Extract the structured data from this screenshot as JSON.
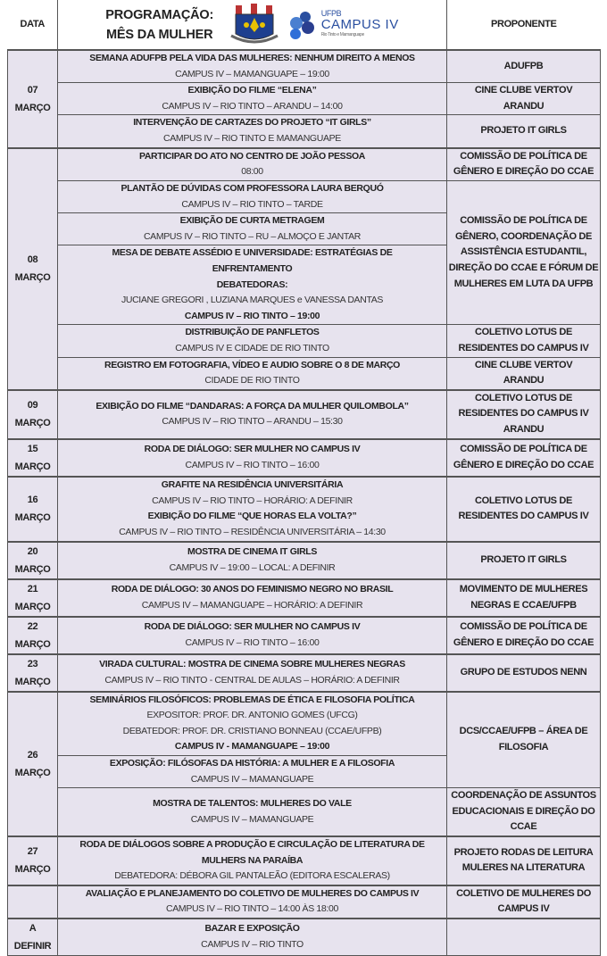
{
  "header": {
    "date_col": "DATA",
    "title_line1": "PROGRAMAÇÃO:",
    "title_line2": "MÊS DA MULHER",
    "proponent_col": "PROPONENTE",
    "logo_ufpb_label": "UFPB",
    "logo_campus_label": "CAMPUS IV",
    "logo_campus_sub": "Rio Tinto e Mamanguape"
  },
  "colors": {
    "row_bg": "#e7e3ee",
    "border": "#555555",
    "logo_blue": "#2a4fa0"
  },
  "groups": [
    {
      "date": [
        "07",
        "MARÇO"
      ],
      "events": [
        {
          "lines": [
            {
              "t": "SEMANA ADUFPB PELA VIDA DAS MULHERES: NENHUM DIREITO A MENOS",
              "b": true
            },
            {
              "t": "CAMPUS IV – MAMANGUAPE – 19:00",
              "b": false
            }
          ]
        },
        {
          "lines": [
            {
              "t": "EXIBIÇÃO DO FILME “ELENA”",
              "b": true
            },
            {
              "t": "CAMPUS IV – RIO TINTO  – ARANDU – 14:00",
              "b": false
            }
          ]
        },
        {
          "lines": [
            {
              "t": "INTERVENÇÃO DE CARTAZES DO PROJETO “IT GIRLS”",
              "b": true
            },
            {
              "t": "CAMPUS IV – RIO TINTO E MAMANGUAPE",
              "b": false
            }
          ]
        }
      ],
      "proponents": [
        {
          "covers": 1,
          "lines": [
            "ADUFPB"
          ]
        },
        {
          "covers": 1,
          "lines": [
            "CINE CLUBE VERTOV",
            "ARANDU"
          ]
        },
        {
          "covers": 1,
          "lines": [
            "PROJETO IT GIRLS"
          ]
        }
      ]
    },
    {
      "date": [
        "08",
        "MARÇO"
      ],
      "events": [
        {
          "lines": [
            {
              "t": "PARTICIPAR DO ATO NO CENTRO DE JOÃO PESSOA",
              "b": true
            },
            {
              "t": "08:00",
              "b": false
            }
          ]
        },
        {
          "lines": [
            {
              "t": "PLANTÃO DE DÚVIDAS COM PROFESSORA LAURA  BERQUÓ",
              "b": true
            },
            {
              "t": "CAMPUS IV – RIO TINTO – TARDE",
              "b": false
            }
          ]
        },
        {
          "lines": [
            {
              "t": "EXIBIÇÃO DE CURTA METRAGEM",
              "b": true
            },
            {
              "t": "CAMPUS IV – RIO TINTO – RU – ALMOÇO E JANTAR",
              "b": false
            }
          ]
        },
        {
          "lines": [
            {
              "t": "MESA DE DEBATE ASSÉDIO E UNIVERSIDADE: ESTRATÉGIAS DE",
              "b": true
            },
            {
              "t": "ENFRENTAMENTO",
              "b": true
            },
            {
              "t": "DEBATEDORAS:",
              "b": true
            },
            {
              "t": "JUCIANE GREGORI , LUZIANA MARQUES e VANESSA DANTAS",
              "b": false
            },
            {
              "t": "CAMPUS IV – RIO TINTO – 19:00",
              "b": true
            }
          ]
        },
        {
          "lines": [
            {
              "t": "DISTRIBUIÇÃO DE PANFLETOS",
              "b": true
            },
            {
              "t": "CAMPUS IV E CIDADE DE RIO TINTO",
              "b": false
            }
          ]
        },
        {
          "lines": [
            {
              "t": "REGISTRO EM FOTOGRAFIA, VÍDEO E AUDIO SOBRE O 8 DE MARÇO",
              "b": true
            },
            {
              "t": "CIDADE DE RIO TINTO",
              "b": false
            }
          ]
        }
      ],
      "proponents": [
        {
          "covers": 1,
          "lines": [
            "COMISSÃO DE POLÍTICA DE",
            "GÊNERO E DIREÇÃO DO CCAE"
          ]
        },
        {
          "covers": 3,
          "lines": [
            "COMISSÃO DE POLÍTICA DE",
            "GÊNERO, COORDENAÇÃO DE",
            "ASSISTÊNCIA ESTUDANTIL,",
            "DIREÇÃO DO CCAE E FÓRUM DE",
            "MULHERES EM LUTA DA UFPB"
          ]
        },
        {
          "covers": 1,
          "lines": [
            "COLETIVO LOTUS DE",
            "RESIDENTES DO CAMPUS IV"
          ]
        },
        {
          "covers": 1,
          "lines": [
            "CINE CLUBE VERTOV",
            "ARANDU"
          ]
        }
      ]
    },
    {
      "date": [
        "09",
        "MARÇO"
      ],
      "events": [
        {
          "lines": [
            {
              "t": "EXIBIÇÃO DO FILME “DANDARAS: A FORÇA DA MULHER QUILOMBOLA”",
              "b": true
            },
            {
              "t": "CAMPUS IV – RIO TINTO – ARANDU – 15:30",
              "b": false
            }
          ]
        }
      ],
      "proponents": [
        {
          "covers": 1,
          "lines": [
            "COLETIVO LOTUS DE",
            "RESIDENTES DO CAMPUS IV",
            "ARANDU"
          ]
        }
      ]
    },
    {
      "date": [
        "15",
        "MARÇO"
      ],
      "events": [
        {
          "lines": [
            {
              "t": "RODA DE DIÁLOGO:  SER MULHER NO CAMPUS IV",
              "b": true
            },
            {
              "t": "CAMPUS IV – RIO TINTO – 16:00",
              "b": false
            }
          ]
        }
      ],
      "proponents": [
        {
          "covers": 1,
          "lines": [
            "COMISSÃO DE POLÍTICA DE",
            "GÊNERO E DIREÇÃO DO CCAE"
          ]
        }
      ]
    },
    {
      "date": [
        "16",
        "MARÇO"
      ],
      "events": [
        {
          "lines": [
            {
              "t": "GRAFITE NA RESIDÊNCIA UNIVERSITÁRIA",
              "b": true
            },
            {
              "t": "CAMPUS IV – RIO TINTO – HORÁRIO: A DEFINIR",
              "b": false
            },
            {
              "t": "EXIBIÇÃO DO FILME “QUE HORAS ELA VOLTA?”",
              "b": true
            },
            {
              "t": "CAMPUS IV – RIO TINTO – RESIDÊNCIA UNIVERSITÁRIA – 14:30",
              "b": false
            }
          ]
        }
      ],
      "proponents": [
        {
          "covers": 1,
          "lines": [
            "COLETIVO LOTUS DE",
            "RESIDENTES DO CAMPUS IV"
          ]
        }
      ]
    },
    {
      "date": [
        "20",
        "MARÇO"
      ],
      "events": [
        {
          "lines": [
            {
              "t": "MOSTRA DE CINEMA IT GIRLS",
              "b": true
            },
            {
              "t": "CAMPUS IV – 19:00 – LOCAL: A DEFINIR",
              "b": false
            }
          ]
        }
      ],
      "proponents": [
        {
          "covers": 1,
          "lines": [
            "PROJETO IT GIRLS"
          ]
        }
      ]
    },
    {
      "date": [
        "21",
        "MARÇO"
      ],
      "events": [
        {
          "lines": [
            {
              "t": "RODA DE DIÁLOGO: 30 ANOS DO FEMINISMO NEGRO NO BRASIL",
              "b": true
            },
            {
              "t": "CAMPUS IV – MAMANGUAPE – HORÁRIO: A DEFINIR",
              "b": false
            }
          ]
        }
      ],
      "proponents": [
        {
          "covers": 1,
          "lines": [
            "MOVIMENTO DE MULHERES",
            "NEGRAS E CCAE/UFPB"
          ]
        }
      ]
    },
    {
      "date": [
        "22",
        "MARÇO"
      ],
      "events": [
        {
          "lines": [
            {
              "t": "RODA DE DIÁLOGO:  SER MULHER NO CAMPUS IV",
              "b": true
            },
            {
              "t": "CAMPUS IV – RIO TINTO – 16:00",
              "b": false
            }
          ]
        }
      ],
      "proponents": [
        {
          "covers": 1,
          "lines": [
            "COMISSÃO DE POLÍTICA DE",
            "GÊNERO E DIREÇÃO DO CCAE"
          ]
        }
      ]
    },
    {
      "date": [
        "23",
        "MARÇO"
      ],
      "events": [
        {
          "lines": [
            {
              "t": "VIRADA CULTURAL: MOSTRA DE CINEMA SOBRE MULHERES NEGRAS",
              "b": true
            },
            {
              "t": "CAMPUS IV – RIO TINTO - CENTRAL DE AULAS – HORÁRIO: A DEFINIR",
              "b": false
            }
          ]
        }
      ],
      "proponents": [
        {
          "covers": 1,
          "lines": [
            "GRUPO DE ESTUDOS NENN"
          ]
        }
      ]
    },
    {
      "date": [
        "26",
        "MARÇO"
      ],
      "events": [
        {
          "lines": [
            {
              "t": "SEMINÁRIOS FILOSÓFICOS: PROBLEMAS DE ÉTICA E FILOSOFIA POLÍTICA",
              "b": true
            },
            {
              "t": "EXPOSITOR: PROF. DR. ANTONIO GOMES (UFCG)",
              "b": false
            },
            {
              "t": "DEBATEDOR: PROF. DR. CRISTIANO BONNEAU (CCAE/UFPB)",
              "b": false
            },
            {
              "t": "CAMPUS IV - MAMANGUAPE – 19:00",
              "b": true
            }
          ]
        },
        {
          "lines": [
            {
              "t": "EXPOSIÇÃO: FILÓSOFAS DA HISTÓRIA: A MULHER E A FILOSOFIA",
              "b": true
            },
            {
              "t": "CAMPUS IV – MAMANGUAPE",
              "b": false
            }
          ]
        },
        {
          "lines": [
            {
              "t": "MOSTRA DE TALENTOS: MULHERES DO VALE",
              "b": true
            },
            {
              "t": "CAMPUS IV – MAMANGUAPE",
              "b": false
            }
          ]
        }
      ],
      "proponents": [
        {
          "covers": 2,
          "lines": [
            "DCS/CCAE/UFPB – ÁREA DE",
            "FILOSOFIA"
          ]
        },
        {
          "covers": 1,
          "lines": [
            "COORDENAÇÃO DE ASSUNTOS",
            "EDUCACIONAIS E DIREÇÃO DO",
            "CCAE"
          ]
        }
      ]
    },
    {
      "date": [
        "27",
        "MARÇO"
      ],
      "events": [
        {
          "lines": [
            {
              "t": "RODA DE DIÁLOGOS SOBRE A PRODUÇÃO E CIRCULAÇÃO DE LITERATURA DE",
              "b": true
            },
            {
              "t": "MULHERS NA PARAÍBA",
              "b": true
            },
            {
              "t": "DEBATEDORA: DÉBORA GIL PANTALEÃO (EDITORA ESCALERAS)",
              "b": false
            }
          ]
        }
      ],
      "proponents": [
        {
          "covers": 1,
          "lines": [
            "PROJETO RODAS DE LEITURA",
            "MULERES NA LITERATURA"
          ]
        }
      ]
    },
    {
      "date": [],
      "events": [
        {
          "lines": [
            {
              "t": "AVALIAÇÃO E PLANEJAMENTO DO COLETIVO DE MULHERES DO CAMPUS IV",
              "b": true
            },
            {
              "t": "CAMPUS IV – RIO TINTO – 14:00 ÀS 18:00",
              "b": false
            }
          ]
        }
      ],
      "proponents": [
        {
          "covers": 1,
          "lines": [
            "COLETIVO DE MULHERES DO",
            "CAMPUS IV"
          ]
        }
      ]
    },
    {
      "date": [
        "A",
        "DEFINIR"
      ],
      "events": [
        {
          "lines": [
            {
              "t": "BAZAR E EXPOSIÇÃO",
              "b": true
            },
            {
              "t": "CAMPUS IV – RIO TINTO",
              "b": false
            }
          ]
        }
      ],
      "proponents": [
        {
          "covers": 1,
          "lines": []
        }
      ]
    }
  ]
}
